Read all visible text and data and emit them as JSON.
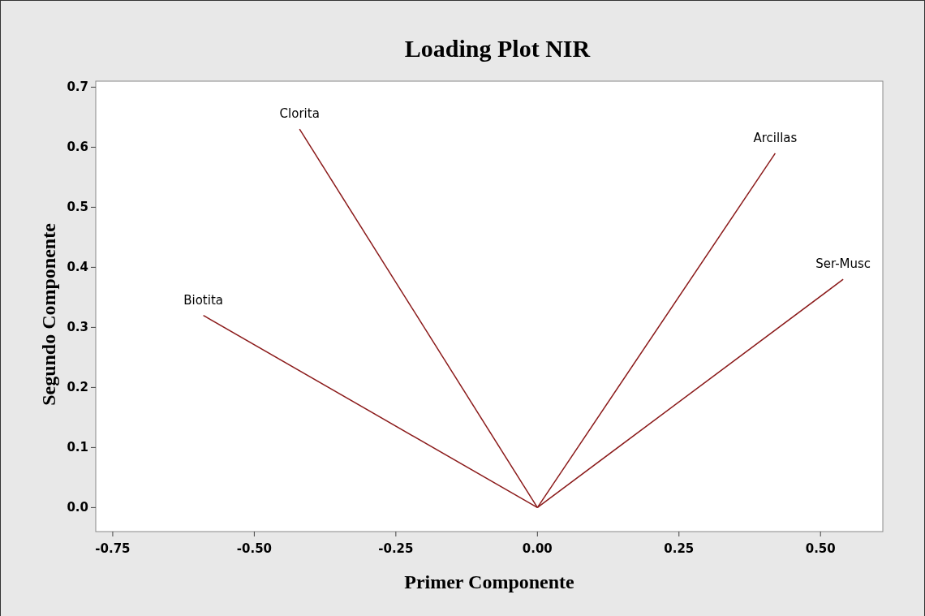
{
  "chart_data": {
    "type": "line",
    "title": "Loading Plot NIR",
    "xlabel": "Primer Componente",
    "ylabel": "Segundo Componente",
    "xlim": [
      -0.78,
      0.61
    ],
    "ylim": [
      -0.04,
      0.71
    ],
    "xticks": [
      {
        "value": -0.75,
        "label": "-0.75"
      },
      {
        "value": -0.5,
        "label": "-0.50"
      },
      {
        "value": -0.25,
        "label": "-0.25"
      },
      {
        "value": 0,
        "label": "0.00"
      },
      {
        "value": 0.25,
        "label": "0.25"
      },
      {
        "value": 0.5,
        "label": "0.50"
      }
    ],
    "yticks": [
      {
        "value": 0,
        "label": "0.0"
      },
      {
        "value": 0.1,
        "label": "0.1"
      },
      {
        "value": 0.2,
        "label": "0.2"
      },
      {
        "value": 0.3,
        "label": "0.3"
      },
      {
        "value": 0.4,
        "label": "0.4"
      },
      {
        "value": 0.5,
        "label": "0.5"
      },
      {
        "value": 0.6,
        "label": "0.6"
      },
      {
        "value": 0.7,
        "label": "0.7"
      }
    ],
    "grid": false,
    "marker": "none",
    "line_style": "solid",
    "series": [
      {
        "name": "Biotita",
        "color": "#8b1a1a",
        "x": [
          0,
          -0.59
        ],
        "values": [
          0,
          0.32
        ]
      },
      {
        "name": "Clorita",
        "color": "#8b1a1a",
        "x": [
          0,
          -0.42
        ],
        "values": [
          0,
          0.63
        ]
      },
      {
        "name": "Arcillas",
        "color": "#8b1a1a",
        "x": [
          0,
          0.42
        ],
        "values": [
          0,
          0.59
        ]
      },
      {
        "name": "Ser-Musc",
        "color": "#8b1a1a",
        "x": [
          0,
          0.54
        ],
        "values": [
          0,
          0.38
        ]
      }
    ]
  }
}
